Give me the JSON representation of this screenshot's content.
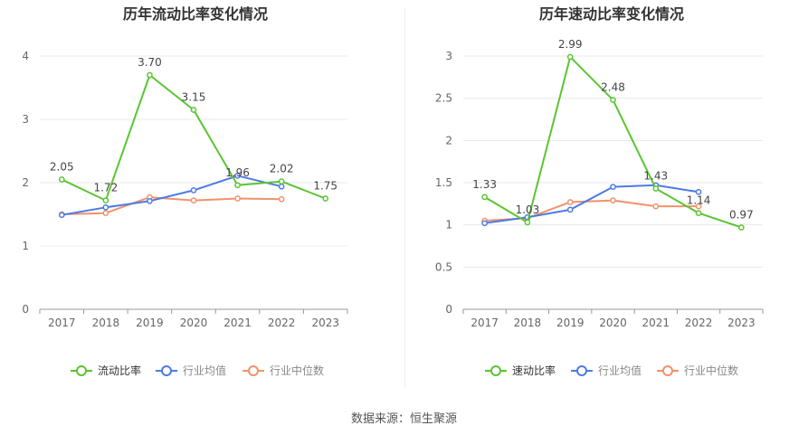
{
  "chart_data": [
    {
      "type": "line",
      "title": "历年流动比率变化情况",
      "categories": [
        "2017",
        "2018",
        "2019",
        "2020",
        "2021",
        "2022",
        "2023"
      ],
      "ylim": [
        0,
        4
      ],
      "yticks": [
        "0",
        "1",
        "2",
        "3",
        "4"
      ],
      "grid": true,
      "legend_position": "bottom",
      "series": [
        {
          "name": "流动比率",
          "color": "#5ac531",
          "values": [
            2.05,
            1.72,
            3.7,
            3.15,
            1.96,
            2.02,
            1.75
          ],
          "labels": [
            "2.05",
            "1.72",
            "3.70",
            "3.15",
            "1.96",
            "2.02",
            "1.75"
          ]
        },
        {
          "name": "行业均值",
          "color": "#4c7be5",
          "values": [
            1.49,
            1.61,
            1.71,
            1.88,
            2.11,
            1.94,
            null
          ]
        },
        {
          "name": "行业中位数",
          "color": "#f2926b",
          "values": [
            1.5,
            1.52,
            1.77,
            1.72,
            1.75,
            1.74,
            null
          ]
        }
      ]
    },
    {
      "type": "line",
      "title": "历年速动比率变化情况",
      "categories": [
        "2017",
        "2018",
        "2019",
        "2020",
        "2021",
        "2022",
        "2023"
      ],
      "ylim": [
        0,
        3
      ],
      "yticks": [
        "0",
        "0.5",
        "1",
        "1.5",
        "2",
        "2.5",
        "3"
      ],
      "grid": true,
      "legend_position": "bottom",
      "series": [
        {
          "name": "速动比率",
          "color": "#5ac531",
          "values": [
            1.33,
            1.03,
            2.99,
            2.48,
            1.43,
            1.14,
            0.97
          ],
          "labels": [
            "1.33",
            "1.03",
            "2.99",
            "2.48",
            "1.43",
            "1.14",
            "0.97"
          ]
        },
        {
          "name": "行业均值",
          "color": "#4c7be5",
          "values": [
            1.02,
            1.09,
            1.18,
            1.45,
            1.47,
            1.39,
            null
          ]
        },
        {
          "name": "行业中位数",
          "color": "#f2926b",
          "values": [
            1.05,
            1.08,
            1.27,
            1.29,
            1.22,
            1.22,
            null
          ]
        }
      ]
    }
  ],
  "source": {
    "label": "数据来源：",
    "value": "恒生聚源"
  }
}
